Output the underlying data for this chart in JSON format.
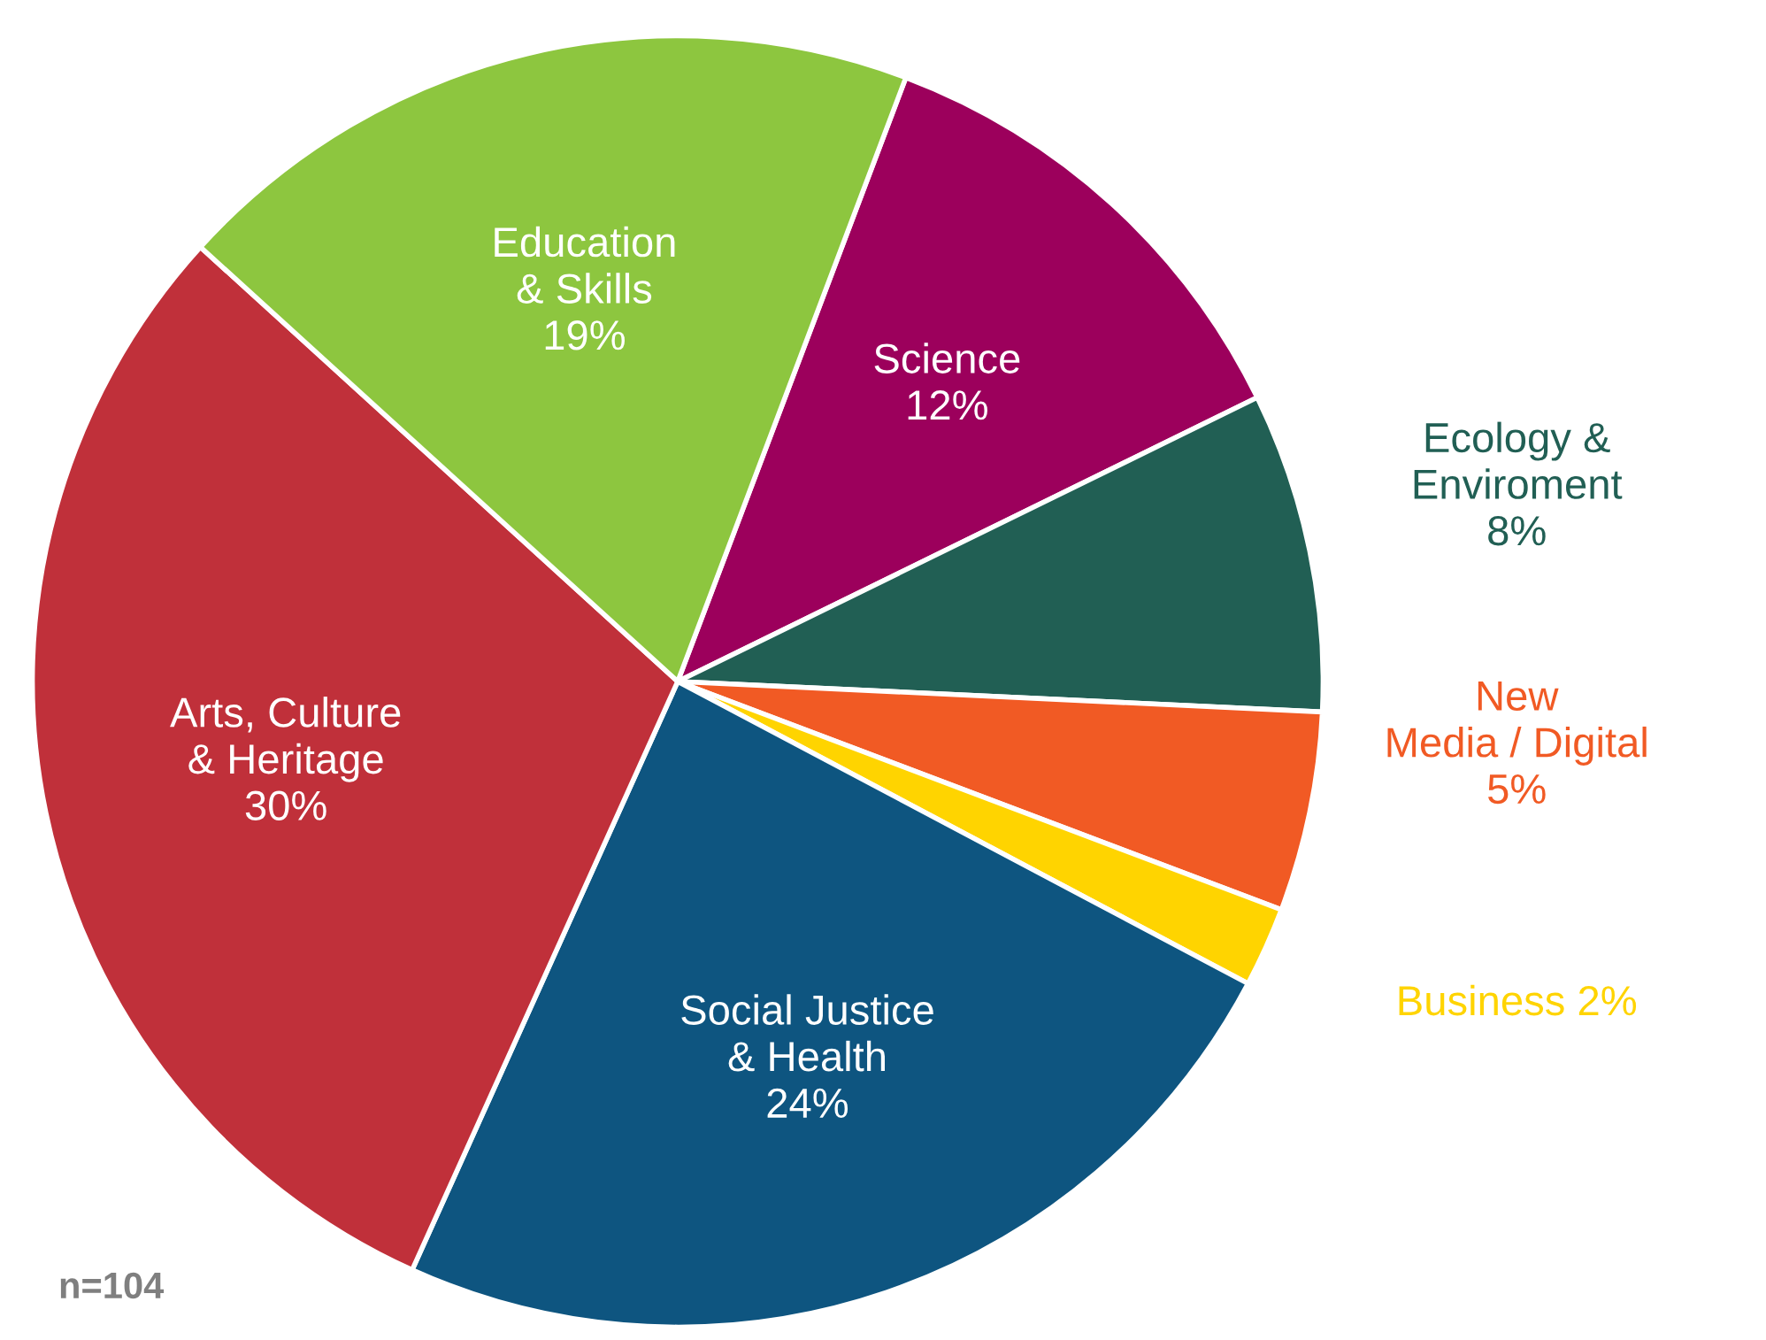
{
  "chart_data": {
    "type": "pie",
    "categories": [
      "Science",
      "Ecology &\nEnviroment",
      "New\nMedia / Digital",
      "Business",
      "Social Justice\n& Health",
      "Arts, Culture\n& Heritage",
      "Education\n& Skills"
    ],
    "values": [
      12,
      8,
      5,
      2,
      24,
      30,
      19
    ],
    "value_labels": [
      "12%",
      "8%",
      "5%",
      "2%",
      "24%",
      "30%",
      "19%"
    ],
    "colors": [
      "#9c005c",
      "#215f54",
      "#f15a24",
      "#ffd400",
      "#0e5580",
      "#c0303a",
      "#8dc63f"
    ],
    "annotations": [
      "n=104"
    ]
  }
}
